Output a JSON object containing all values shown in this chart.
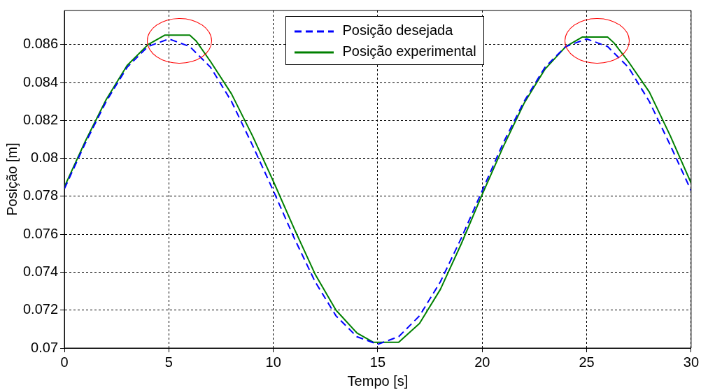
{
  "chart_data": {
    "type": "line",
    "xlabel": "Tempo [s]",
    "ylabel": "Posição [m]",
    "xlim": [
      0,
      30
    ],
    "xticks": [
      0,
      5,
      10,
      15,
      20,
      25,
      30
    ],
    "ylim": [
      0.07,
      0.0878
    ],
    "yticks": [
      0.07,
      0.072,
      0.074,
      0.076,
      0.078,
      0.08,
      0.082,
      0.084,
      0.086
    ],
    "grid": true,
    "legend": "top",
    "marker": "none",
    "series": [
      {
        "name": "Posição desejada",
        "color": "#0000ff",
        "line_style": "dashed",
        "x": [
          0,
          1,
          2,
          3,
          4,
          5,
          6,
          7,
          8,
          9,
          10,
          11,
          12,
          13,
          14,
          15,
          16,
          17,
          18,
          19,
          20,
          21,
          22,
          23,
          24,
          25,
          26,
          27,
          28,
          29,
          30
        ],
        "values": [
          0.0784,
          0.0808,
          0.083,
          0.0848,
          0.0859,
          0.0863,
          0.0859,
          0.0848,
          0.083,
          0.0807,
          0.0783,
          0.0758,
          0.0735,
          0.0717,
          0.0706,
          0.0702,
          0.0706,
          0.0717,
          0.0735,
          0.0758,
          0.0783,
          0.0808,
          0.083,
          0.0848,
          0.0859,
          0.0863,
          0.0859,
          0.0848,
          0.083,
          0.0807,
          0.0783
        ]
      },
      {
        "name": "Posição experimental",
        "color": "#008000",
        "line_style": "solid",
        "x": [
          0,
          1,
          2,
          3,
          4,
          4.8,
          6,
          6.3,
          7,
          8,
          9,
          10,
          11,
          12,
          13,
          14,
          14.8,
          16,
          17,
          18,
          19,
          20,
          21,
          22,
          23,
          24,
          24.8,
          26,
          26.3,
          27,
          28,
          29,
          30
        ],
        "values": [
          0.0785,
          0.0809,
          0.0831,
          0.0849,
          0.086,
          0.0865,
          0.0865,
          0.0862,
          0.0851,
          0.0834,
          0.0812,
          0.0788,
          0.0763,
          0.0739,
          0.072,
          0.0708,
          0.0703,
          0.0703,
          0.0713,
          0.0731,
          0.0755,
          0.0781,
          0.0806,
          0.0829,
          0.0847,
          0.0859,
          0.0864,
          0.0864,
          0.0861,
          0.0851,
          0.0835,
          0.0812,
          0.0787
        ]
      }
    ]
  }
}
